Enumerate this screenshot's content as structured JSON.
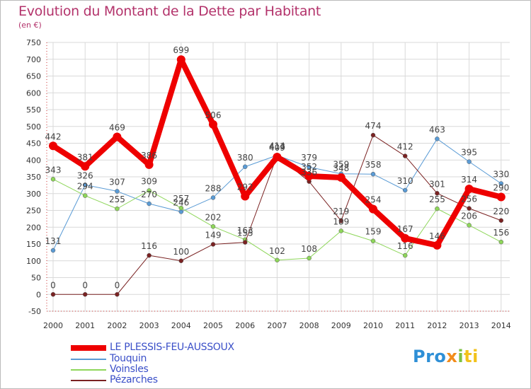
{
  "title": "Evolution du Montant de la Dette par Habitant",
  "subtitle": "(en €)",
  "logo": {
    "part1": "Pro",
    "part2": "x",
    "part3": "i",
    "part4": "ti"
  },
  "chart_data": {
    "type": "line",
    "x": [
      "2000",
      "2001",
      "2002",
      "2003",
      "2004",
      "2005",
      "2006",
      "2007",
      "2008",
      "2009",
      "2010",
      "2011",
      "2012",
      "2013",
      "2014"
    ],
    "ylim": [
      -50,
      750
    ],
    "yticks": [
      -50,
      0,
      50,
      100,
      150,
      200,
      250,
      300,
      350,
      400,
      450,
      500,
      550,
      600,
      650,
      700,
      750
    ],
    "grid": true,
    "legend_position": "bottom-left",
    "series": [
      {
        "name": "LE PLESSIS-FEU-AUSSOUX",
        "color": "#ee0000",
        "width": 8,
        "values": [
          442,
          381,
          469,
          386,
          699,
          506,
          292,
          409,
          352,
          348,
          254,
          167,
          146,
          314,
          290
        ]
      },
      {
        "name": "Touquin",
        "color": "#5a9bd5",
        "width": 1,
        "values": [
          131,
          326,
          307,
          270,
          246,
          288,
          380,
          414,
          379,
          359,
          358,
          310,
          463,
          395,
          330
        ]
      },
      {
        "name": "Voinsles",
        "color": "#8ed65a",
        "width": 1,
        "values": [
          343,
          294,
          255,
          309,
          257,
          202,
          163,
          102,
          108,
          189,
          159,
          116,
          255,
          206,
          156
        ]
      },
      {
        "name": "Pézarches",
        "color": "#7a2222",
        "width": 1,
        "values": [
          0,
          0,
          0,
          116,
          100,
          149,
          155,
          413,
          336,
          219,
          474,
          412,
          301,
          256,
          220
        ]
      }
    ]
  }
}
